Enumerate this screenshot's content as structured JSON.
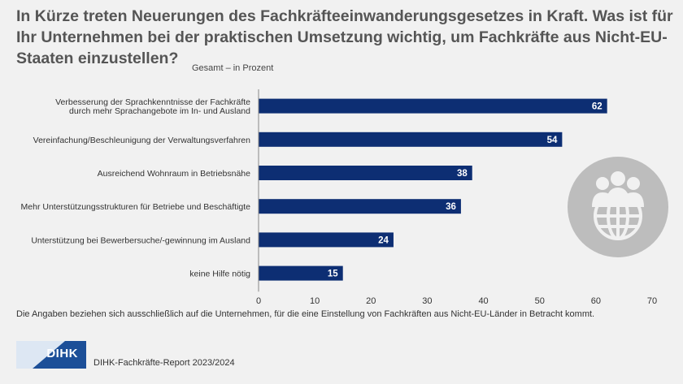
{
  "header": {
    "title": "In Kürze treten Neuerungen des Fachkräfteeinwanderungsgesetzes in Kraft. Was ist für Ihr Unternehmen bei der praktischen Umsetzung wichtig, um Fachkräfte aus Nicht-EU-Staaten einzustellen?",
    "subtitle": "Gesamt – in Prozent"
  },
  "footer": {
    "note": "Die Angaben beziehen sich ausschließlich auf die Unternehmen, für die eine Einstellung von Fachkräften aus Nicht-EU-Länder in Betracht kommt.",
    "source": "DIHK-Fachkräfte-Report 2023/2024",
    "logo_text": "DIHK"
  },
  "icon": {
    "name": "people-globe-icon",
    "color": "#bdbdbd"
  },
  "colors": {
    "bar": "#0d2e73",
    "background": "#f1f1f1",
    "title": "#555555",
    "logo_light": "#dde7f3",
    "logo_dark": "#1c4f98"
  },
  "chart_data": {
    "type": "bar",
    "orientation": "horizontal",
    "categories": [
      [
        "Verbesserung der Sprachkenntnisse der Fachkräfte",
        "durch mehr Sprachangebote im In- und Ausland"
      ],
      [
        "Vereinfachung/Beschleunigung der Verwaltungsverfahren"
      ],
      [
        "Ausreichend Wohnraum in Betriebsnähe"
      ],
      [
        "Mehr Unterstützungsstrukturen für Betriebe und Beschäftigte"
      ],
      [
        "Unterstützung bei Bewerbersuche/-gewinnung im Ausland"
      ],
      [
        "keine Hilfe nötig"
      ]
    ],
    "values": [
      62,
      54,
      38,
      36,
      24,
      15
    ],
    "xlim": [
      0,
      70
    ],
    "xticks": [
      0,
      10,
      20,
      30,
      40,
      50,
      60,
      70
    ],
    "grid": false,
    "data_labels": true
  }
}
